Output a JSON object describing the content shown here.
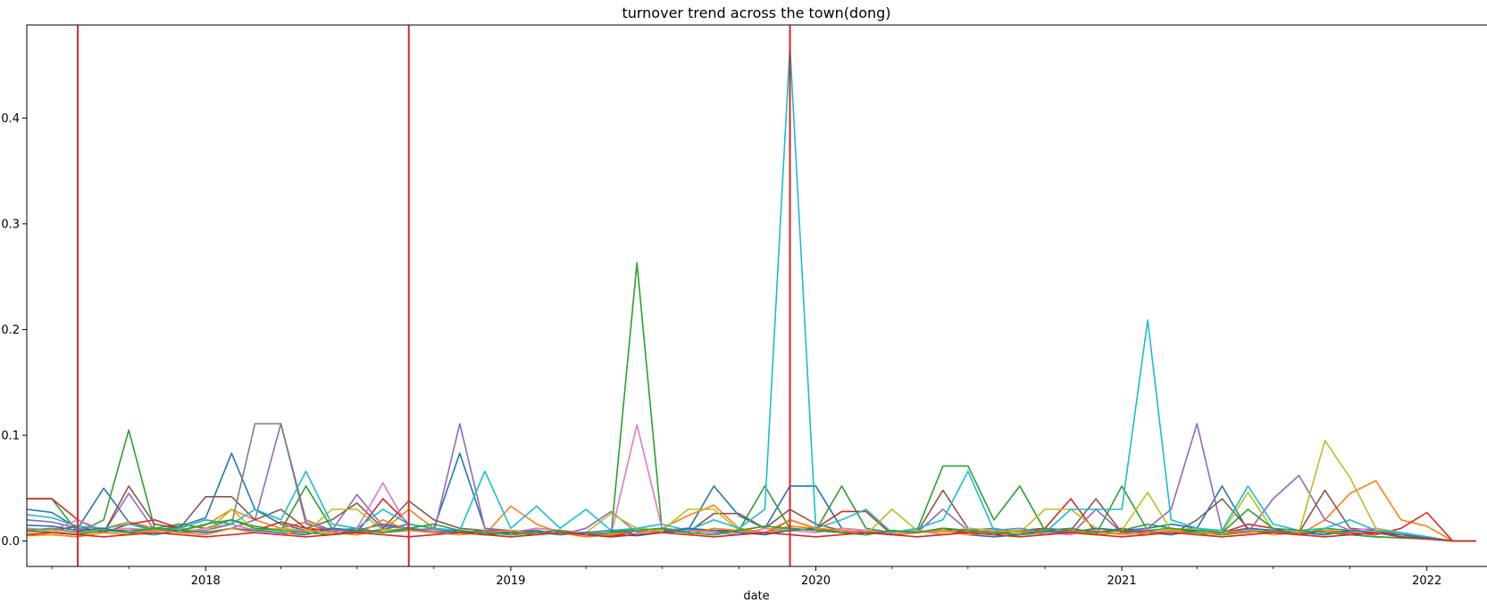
{
  "chart_data": {
    "type": "line",
    "title": "turnover trend across the town(dong)",
    "xlabel": "date",
    "ylabel": "",
    "x_type": "date",
    "xlim": [
      "2017-06-01",
      "2022-03-15"
    ],
    "ylim": [
      -0.024,
      0.488
    ],
    "x_ticks": [
      {
        "date": "2018-01-01",
        "label": "2018"
      },
      {
        "date": "2019-01-01",
        "label": "2019"
      },
      {
        "date": "2020-01-01",
        "label": "2020"
      },
      {
        "date": "2021-01-01",
        "label": "2021"
      },
      {
        "date": "2022-01-01",
        "label": "2022"
      }
    ],
    "y_ticks": [
      {
        "value": 0.0,
        "label": "0.0"
      },
      {
        "value": 0.1,
        "label": "0.1"
      },
      {
        "value": 0.2,
        "label": "0.2"
      },
      {
        "value": 0.3,
        "label": "0.3"
      },
      {
        "value": 0.4,
        "label": "0.4"
      }
    ],
    "grid": false,
    "vlines": {
      "color": "#d62728",
      "dates": [
        "2017-08-01",
        "2018-09-01",
        "2019-12-01"
      ]
    },
    "dates": [
      "2017-06",
      "2017-07",
      "2017-08",
      "2017-09",
      "2017-10",
      "2017-11",
      "2017-12",
      "2018-01",
      "2018-02",
      "2018-03",
      "2018-04",
      "2018-05",
      "2018-06",
      "2018-07",
      "2018-08",
      "2018-09",
      "2018-10",
      "2018-11",
      "2018-12",
      "2019-01",
      "2019-02",
      "2019-03",
      "2019-04",
      "2019-05",
      "2019-06",
      "2019-07",
      "2019-08",
      "2019-09",
      "2019-10",
      "2019-11",
      "2019-12",
      "2020-01",
      "2020-02",
      "2020-03",
      "2020-04",
      "2020-05",
      "2020-06",
      "2020-07",
      "2020-08",
      "2020-09",
      "2020-10",
      "2020-11",
      "2020-12",
      "2021-01",
      "2021-02",
      "2021-03",
      "2021-04",
      "2021-05",
      "2021-06",
      "2021-07",
      "2021-08",
      "2021-09",
      "2021-10",
      "2021-11",
      "2021-12",
      "2022-01",
      "2022-02",
      "2022-03"
    ],
    "series": [
      {
        "color": "#1f77b4",
        "values": [
          0.03,
          0.027,
          0.012,
          0.05,
          0.018,
          0.01,
          0.014,
          0.022,
          0.083,
          0.03,
          0.016,
          0.01,
          0.012,
          0.008,
          0.011,
          0.016,
          0.012,
          0.083,
          0.012,
          0.008,
          0.006,
          0.008,
          0.004,
          0.006,
          0.005,
          0.008,
          0.01,
          0.052,
          0.024,
          0.012,
          0.052,
          0.052,
          0.012,
          0.01,
          0.006,
          0.008,
          0.012,
          0.006,
          0.004,
          0.006,
          0.008,
          0.01,
          0.008,
          0.01,
          0.012,
          0.016,
          0.012,
          0.052,
          0.01,
          0.008,
          0.006,
          0.01,
          0.006,
          0.004,
          0.003,
          0.002,
          0.0,
          0.0
        ]
      },
      {
        "color": "#ff7f0e",
        "values": [
          0.01,
          0.012,
          0.008,
          0.012,
          0.018,
          0.012,
          0.01,
          0.015,
          0.03,
          0.02,
          0.012,
          0.018,
          0.008,
          0.006,
          0.01,
          0.03,
          0.012,
          0.008,
          0.006,
          0.033,
          0.016,
          0.008,
          0.006,
          0.004,
          0.01,
          0.012,
          0.024,
          0.034,
          0.012,
          0.008,
          0.014,
          0.012,
          0.01,
          0.008,
          0.006,
          0.008,
          0.01,
          0.006,
          0.008,
          0.01,
          0.008,
          0.01,
          0.006,
          0.008,
          0.006,
          0.01,
          0.008,
          0.006,
          0.008,
          0.01,
          0.006,
          0.02,
          0.045,
          0.057,
          0.02,
          0.014,
          0.0,
          0.0
        ]
      },
      {
        "color": "#2ca02c",
        "values": [
          0.04,
          0.04,
          0.008,
          0.02,
          0.105,
          0.012,
          0.016,
          0.012,
          0.02,
          0.014,
          0.01,
          0.052,
          0.012,
          0.01,
          0.008,
          0.012,
          0.01,
          0.008,
          0.006,
          0.008,
          0.01,
          0.006,
          0.008,
          0.005,
          0.263,
          0.01,
          0.012,
          0.008,
          0.01,
          0.052,
          0.012,
          0.01,
          0.052,
          0.012,
          0.008,
          0.01,
          0.071,
          0.071,
          0.02,
          0.052,
          0.01,
          0.008,
          0.006,
          0.052,
          0.01,
          0.012,
          0.008,
          0.006,
          0.01,
          0.008,
          0.006,
          0.012,
          0.01,
          0.008,
          0.004,
          0.003,
          0.0,
          0.0
        ]
      },
      {
        "color": "#d62728",
        "values": [
          0.04,
          0.04,
          0.02,
          0.008,
          0.016,
          0.02,
          0.012,
          0.02,
          0.016,
          0.01,
          0.018,
          0.012,
          0.01,
          0.008,
          0.04,
          0.016,
          0.012,
          0.008,
          0.01,
          0.006,
          0.008,
          0.01,
          0.006,
          0.004,
          0.01,
          0.008,
          0.012,
          0.01,
          0.01,
          0.006,
          0.02,
          0.012,
          0.028,
          0.028,
          0.006,
          0.008,
          0.012,
          0.008,
          0.006,
          0.01,
          0.012,
          0.04,
          0.008,
          0.012,
          0.008,
          0.01,
          0.012,
          0.008,
          0.016,
          0.012,
          0.006,
          0.01,
          0.008,
          0.006,
          0.012,
          0.027,
          0.0,
          0.0
        ]
      },
      {
        "color": "#9467bd",
        "values": [
          0.02,
          0.018,
          0.012,
          0.008,
          0.045,
          0.01,
          0.012,
          0.008,
          0.012,
          0.02,
          0.111,
          0.016,
          0.01,
          0.044,
          0.014,
          0.012,
          0.008,
          0.111,
          0.012,
          0.01,
          0.008,
          0.006,
          0.012,
          0.028,
          0.008,
          0.01,
          0.012,
          0.008,
          0.01,
          0.006,
          0.012,
          0.01,
          0.008,
          0.01,
          0.006,
          0.008,
          0.03,
          0.01,
          0.012,
          0.008,
          0.01,
          0.006,
          0.03,
          0.008,
          0.012,
          0.03,
          0.111,
          0.01,
          0.008,
          0.04,
          0.062,
          0.02,
          0.01,
          0.008,
          0.006,
          0.004,
          0.0,
          0.0
        ]
      },
      {
        "color": "#8c564b",
        "values": [
          0.012,
          0.01,
          0.014,
          0.008,
          0.052,
          0.016,
          0.012,
          0.042,
          0.042,
          0.02,
          0.03,
          0.012,
          0.02,
          0.036,
          0.012,
          0.038,
          0.02,
          0.012,
          0.01,
          0.008,
          0.012,
          0.01,
          0.006,
          0.008,
          0.012,
          0.01,
          0.008,
          0.026,
          0.026,
          0.012,
          0.03,
          0.016,
          0.01,
          0.008,
          0.006,
          0.008,
          0.048,
          0.012,
          0.01,
          0.008,
          0.012,
          0.01,
          0.04,
          0.008,
          0.01,
          0.006,
          0.02,
          0.04,
          0.012,
          0.01,
          0.008,
          0.048,
          0.012,
          0.01,
          0.006,
          0.004,
          0.0,
          0.0
        ]
      },
      {
        "color": "#e377c2",
        "values": [
          0.012,
          0.01,
          0.02,
          0.01,
          0.012,
          0.01,
          0.008,
          0.012,
          0.016,
          0.01,
          0.012,
          0.01,
          0.008,
          0.012,
          0.055,
          0.012,
          0.01,
          0.008,
          0.006,
          0.008,
          0.012,
          0.01,
          0.008,
          0.006,
          0.11,
          0.012,
          0.01,
          0.008,
          0.006,
          0.012,
          0.01,
          0.008,
          0.012,
          0.01,
          0.008,
          0.01,
          0.006,
          0.008,
          0.01,
          0.012,
          0.008,
          0.006,
          0.012,
          0.01,
          0.008,
          0.01,
          0.006,
          0.008,
          0.012,
          0.01,
          0.008,
          0.006,
          0.01,
          0.012,
          0.008,
          0.004,
          0.0,
          0.0
        ]
      },
      {
        "color": "#7f7f7f",
        "values": [
          0.01,
          0.012,
          0.008,
          0.01,
          0.01,
          0.012,
          0.008,
          0.01,
          0.016,
          0.111,
          0.111,
          0.02,
          0.01,
          0.012,
          0.008,
          0.01,
          0.012,
          0.008,
          0.01,
          0.006,
          0.008,
          0.01,
          0.006,
          0.008,
          0.01,
          0.012,
          0.008,
          0.006,
          0.01,
          0.008,
          0.012,
          0.01,
          0.008,
          0.006,
          0.01,
          0.008,
          0.012,
          0.01,
          0.008,
          0.006,
          0.01,
          0.008,
          0.012,
          0.01,
          0.008,
          0.006,
          0.01,
          0.008,
          0.012,
          0.01,
          0.008,
          0.006,
          0.01,
          0.008,
          0.006,
          0.004,
          0.0,
          0.0
        ]
      },
      {
        "color": "#bcbd22",
        "values": [
          0.008,
          0.01,
          0.006,
          0.012,
          0.008,
          0.01,
          0.012,
          0.008,
          0.03,
          0.01,
          0.012,
          0.008,
          0.03,
          0.03,
          0.01,
          0.012,
          0.008,
          0.01,
          0.006,
          0.008,
          0.01,
          0.006,
          0.008,
          0.026,
          0.012,
          0.01,
          0.03,
          0.03,
          0.01,
          0.008,
          0.012,
          0.01,
          0.008,
          0.006,
          0.03,
          0.01,
          0.008,
          0.012,
          0.01,
          0.008,
          0.03,
          0.03,
          0.012,
          0.01,
          0.046,
          0.01,
          0.012,
          0.008,
          0.046,
          0.01,
          0.008,
          0.095,
          0.06,
          0.012,
          0.008,
          0.004,
          0.0,
          0.0
        ]
      },
      {
        "color": "#17becf",
        "values": [
          0.025,
          0.022,
          0.014,
          0.012,
          0.016,
          0.01,
          0.012,
          0.02,
          0.016,
          0.03,
          0.02,
          0.066,
          0.016,
          0.012,
          0.03,
          0.016,
          0.012,
          0.01,
          0.066,
          0.012,
          0.033,
          0.012,
          0.03,
          0.01,
          0.012,
          0.016,
          0.01,
          0.02,
          0.012,
          0.03,
          0.468,
          0.012,
          0.02,
          0.03,
          0.008,
          0.012,
          0.02,
          0.066,
          0.01,
          0.012,
          0.008,
          0.03,
          0.03,
          0.03,
          0.209,
          0.02,
          0.012,
          0.01,
          0.052,
          0.016,
          0.01,
          0.012,
          0.02,
          0.01,
          0.008,
          0.004,
          0.0,
          0.0
        ]
      },
      {
        "color": "#1f77b4",
        "values": [
          0.015,
          0.014,
          0.01,
          0.012,
          0.008,
          0.006,
          0.01,
          0.008,
          0.012,
          0.01,
          0.008,
          0.006,
          0.012,
          0.01,
          0.016,
          0.012,
          0.008,
          0.01,
          0.006,
          0.008,
          0.01,
          0.006,
          0.008,
          0.01,
          0.006,
          0.008,
          0.012,
          0.01,
          0.008,
          0.006,
          0.01,
          0.012,
          0.008,
          0.006,
          0.01,
          0.008,
          0.012,
          0.01,
          0.008,
          0.006,
          0.01,
          0.008,
          0.012,
          0.01,
          0.008,
          0.006,
          0.01,
          0.008,
          0.012,
          0.01,
          0.008,
          0.006,
          0.01,
          0.008,
          0.006,
          0.003,
          0.0,
          0.0
        ]
      },
      {
        "color": "#ff7f0e",
        "values": [
          0.005,
          0.006,
          0.004,
          0.008,
          0.006,
          0.01,
          0.008,
          0.006,
          0.012,
          0.008,
          0.006,
          0.01,
          0.008,
          0.006,
          0.02,
          0.01,
          0.008,
          0.006,
          0.008,
          0.01,
          0.006,
          0.008,
          0.004,
          0.006,
          0.01,
          0.008,
          0.006,
          0.012,
          0.01,
          0.008,
          0.02,
          0.012,
          0.01,
          0.008,
          0.006,
          0.008,
          0.01,
          0.006,
          0.008,
          0.01,
          0.006,
          0.008,
          0.01,
          0.006,
          0.008,
          0.01,
          0.006,
          0.008,
          0.01,
          0.006,
          0.008,
          0.01,
          0.006,
          0.008,
          0.004,
          0.002,
          0.0,
          0.0
        ]
      },
      {
        "color": "#2ca02c",
        "values": [
          0.01,
          0.008,
          0.006,
          0.01,
          0.008,
          0.012,
          0.01,
          0.016,
          0.02,
          0.012,
          0.01,
          0.008,
          0.006,
          0.01,
          0.008,
          0.012,
          0.016,
          0.01,
          0.008,
          0.006,
          0.008,
          0.01,
          0.006,
          0.008,
          0.01,
          0.012,
          0.008,
          0.006,
          0.01,
          0.014,
          0.012,
          0.01,
          0.008,
          0.006,
          0.01,
          0.008,
          0.012,
          0.01,
          0.008,
          0.006,
          0.01,
          0.012,
          0.008,
          0.01,
          0.016,
          0.012,
          0.01,
          0.008,
          0.03,
          0.012,
          0.01,
          0.008,
          0.006,
          0.004,
          0.003,
          0.002,
          0.0,
          0.0
        ]
      },
      {
        "color": "#d62728",
        "values": [
          0.006,
          0.008,
          0.006,
          0.004,
          0.006,
          0.008,
          0.006,
          0.004,
          0.006,
          0.008,
          0.006,
          0.004,
          0.006,
          0.008,
          0.006,
          0.004,
          0.006,
          0.008,
          0.006,
          0.004,
          0.006,
          0.008,
          0.006,
          0.004,
          0.006,
          0.008,
          0.006,
          0.004,
          0.006,
          0.008,
          0.006,
          0.004,
          0.006,
          0.008,
          0.006,
          0.004,
          0.006,
          0.008,
          0.006,
          0.004,
          0.006,
          0.008,
          0.006,
          0.004,
          0.006,
          0.008,
          0.006,
          0.004,
          0.006,
          0.008,
          0.006,
          0.004,
          0.006,
          0.008,
          0.004,
          0.002,
          0.0,
          0.0
        ]
      }
    ]
  }
}
